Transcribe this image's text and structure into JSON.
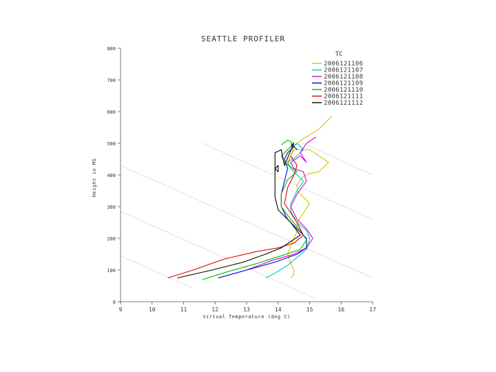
{
  "chart_data": {
    "type": "line",
    "title": "SEATTLE PROFILER",
    "xlabel": "Virtual Temperature (deg C)",
    "ylabel": "Height in MS",
    "xlim": [
      9,
      17
    ],
    "ylim": [
      0,
      800
    ],
    "x_ticks": [
      "9",
      "10",
      "11",
      "12",
      "13",
      "14",
      "15",
      "16",
      "17"
    ],
    "y_ticks": [
      "0",
      "100",
      "200",
      "300",
      "400",
      "500",
      "600",
      "700",
      "800"
    ],
    "grid": false,
    "legend": {
      "placement": "top-right",
      "header": "TC"
    },
    "reference_lines": [
      {
        "points": [
          [
            11.6,
            500
          ],
          [
            17,
            260
          ]
        ]
      },
      {
        "points": [
          [
            9,
            430
          ],
          [
            17,
            75
          ]
        ]
      },
      {
        "points": [
          [
            9,
            285
          ],
          [
            15.2,
            10
          ]
        ]
      },
      {
        "points": [
          [
            9,
            145
          ],
          [
            11.3,
            43
          ]
        ]
      },
      {
        "points": [
          [
            14.8,
            500
          ],
          [
            17,
            400
          ]
        ]
      }
    ],
    "series": [
      {
        "name": "2006121106",
        "color": "#d4c400",
        "x": [
          14.4,
          14.5,
          14.5,
          14.4,
          14.3,
          14.4,
          14.5,
          14.6,
          14.6,
          14.8,
          15.0,
          14.8,
          14.6,
          14.6,
          14.8,
          15.0,
          15.3,
          15.6,
          15.0,
          14.5,
          14.3,
          14.3,
          14.5,
          14.8,
          15.3,
          15.7
        ],
        "y": [
          75,
          85,
          100,
          120,
          150,
          175,
          200,
          220,
          250,
          280,
          310,
          330,
          350,
          370,
          395,
          405,
          410,
          440,
          480,
          480,
          440,
          430,
          490,
          515,
          545,
          585
        ]
      },
      {
        "name": "2006121107",
        "color": "#00c8c8",
        "x": [
          13.6,
          13.9,
          14.3,
          14.6,
          14.9,
          15.0,
          14.9,
          14.6,
          14.4,
          14.4,
          14.6,
          14.8,
          14.6,
          14.4,
          14.3,
          14.6,
          14.8,
          14.6,
          14.4
        ],
        "y": [
          75,
          90,
          115,
          140,
          165,
          200,
          225,
          250,
          285,
          310,
          350,
          380,
          400,
          420,
          440,
          460,
          480,
          500,
          485
        ]
      },
      {
        "name": "2006121108",
        "color": "#d000d0",
        "x": [
          12.1,
          13.0,
          13.8,
          14.5,
          14.9,
          15.1,
          14.9,
          14.6,
          14.4,
          14.6,
          14.9,
          14.8,
          14.5,
          14.4,
          14.7,
          14.9,
          14.7,
          14.9,
          15.2
        ],
        "y": [
          75,
          100,
          130,
          150,
          170,
          200,
          230,
          260,
          300,
          340,
          380,
          410,
          420,
          440,
          460,
          440,
          470,
          500,
          520
        ]
      },
      {
        "name": "2006121109",
        "color": "#0000c8",
        "x": [
          12.1,
          13.0,
          13.9,
          14.6,
          14.9,
          14.9,
          14.6,
          14.3,
          14.1,
          14.1,
          14.2,
          14.3,
          14.2,
          14.3,
          14.5,
          14.6,
          14.4
        ],
        "y": [
          75,
          100,
          125,
          150,
          170,
          200,
          230,
          260,
          300,
          340,
          380,
          420,
          450,
          470,
          490,
          480,
          500
        ]
      },
      {
        "name": "2006121110",
        "color": "#00c000",
        "x": [
          11.6,
          12.4,
          13.3,
          14.1,
          14.7,
          14.9,
          14.7,
          14.4,
          14.1,
          14.1,
          14.3,
          14.6,
          14.4,
          14.2,
          14.1,
          14.3,
          14.5,
          14.3,
          14.1
        ],
        "y": [
          70,
          95,
          120,
          145,
          165,
          195,
          225,
          260,
          300,
          340,
          385,
          410,
          425,
          440,
          460,
          480,
          500,
          510,
          495
        ]
      },
      {
        "name": "2006121111",
        "color": "#e00000",
        "x": [
          10.5,
          11.3,
          12.3,
          13.3,
          14.0,
          14.5,
          14.8,
          14.6,
          14.4,
          14.2,
          14.3,
          14.5,
          14.6,
          14.4
        ],
        "y": [
          75,
          100,
          135,
          158,
          170,
          185,
          210,
          250,
          280,
          310,
          360,
          400,
          430,
          460
        ]
      },
      {
        "name": "2006121112",
        "color": "#000000",
        "x": [
          10.8,
          11.9,
          12.9,
          13.6,
          14.1,
          14.4,
          14.7,
          14.4,
          14.0,
          13.9,
          13.9,
          13.9,
          14.0,
          14.0,
          13.9,
          13.9,
          14.1,
          14.2,
          14.5,
          14.4
        ],
        "y": [
          75,
          100,
          125,
          150,
          170,
          190,
          210,
          250,
          290,
          330,
          380,
          420,
          430,
          410,
          420,
          470,
          480,
          430,
          500,
          490
        ]
      }
    ]
  }
}
